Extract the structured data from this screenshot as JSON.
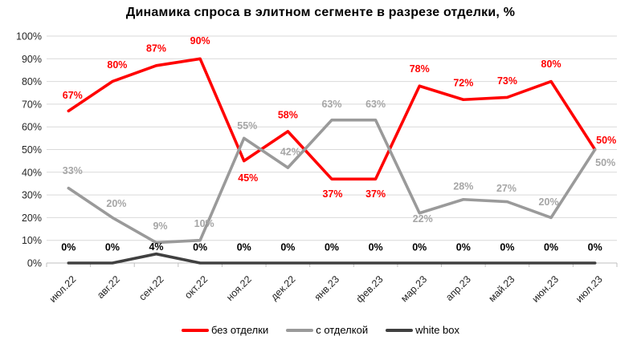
{
  "chart_data": {
    "type": "line",
    "title": "Динамика спроса в элитном сегменте в разрезе отделки, %",
    "categories": [
      "июл.22",
      "авг.22",
      "сен.22",
      "окт.22",
      "ноя.22",
      "дек.22",
      "янв.23",
      "фев.23",
      "мар.23",
      "апр.23",
      "май.23",
      "июн.23",
      "июл.23"
    ],
    "series": [
      {
        "name": "без отделки",
        "color": "#FF0000",
        "label_color": "#FF0000",
        "values": [
          67,
          80,
          87,
          90,
          45,
          58,
          37,
          37,
          78,
          72,
          73,
          80,
          50
        ],
        "label_offsets": [
          [
            5,
            -20
          ],
          [
            6,
            -21
          ],
          [
            0,
            -22
          ],
          [
            0,
            -23
          ],
          [
            5,
            21
          ],
          [
            0,
            -21
          ],
          [
            1,
            18
          ],
          [
            0,
            18
          ],
          [
            0,
            -22
          ],
          [
            0,
            -21
          ],
          [
            0,
            -21
          ],
          [
            0,
            -22
          ],
          [
            14,
            -12
          ]
        ]
      },
      {
        "name": "с отделкой",
        "color": "#9A9A9A",
        "label_color": "#A6A6A6",
        "values": [
          33,
          20,
          9,
          10,
          55,
          42,
          63,
          63,
          22,
          28,
          27,
          20,
          50
        ],
        "label_offsets": [
          [
            5,
            -22
          ],
          [
            5,
            -18
          ],
          [
            5,
            -21
          ],
          [
            5,
            -21
          ],
          [
            4,
            -16
          ],
          [
            3,
            -20
          ],
          [
            0,
            -20
          ],
          [
            0,
            -20
          ],
          [
            4,
            7
          ],
          [
            0,
            -17
          ],
          [
            -1,
            -17
          ],
          [
            -3,
            -20
          ],
          [
            13,
            16
          ]
        ]
      },
      {
        "name": "white box",
        "color": "#404040",
        "label_color": "#000000",
        "values": [
          0,
          0,
          4,
          0,
          0,
          0,
          0,
          0,
          0,
          0,
          0,
          0,
          0
        ],
        "label_offsets": [
          [
            0,
            -20
          ],
          [
            0,
            -20
          ],
          [
            0,
            -9
          ],
          [
            0,
            -20
          ],
          [
            0,
            -20
          ],
          [
            0,
            -20
          ],
          [
            0,
            -20
          ],
          [
            0,
            -20
          ],
          [
            0,
            -20
          ],
          [
            0,
            -20
          ],
          [
            0,
            -20
          ],
          [
            0,
            -20
          ],
          [
            0,
            -20
          ]
        ]
      }
    ],
    "ylim": [
      0,
      100
    ],
    "ytick_labels": [
      "0%",
      "10%",
      "20%",
      "30%",
      "40%",
      "50%",
      "60%",
      "70%",
      "80%",
      "90%",
      "100%"
    ],
    "grid": true,
    "legend_position": "bottom",
    "colors": {
      "gridline": "#D9D9D9",
      "axis_line": "#BFBFBF",
      "tick_text": "#262626",
      "background": "#FFFFFF"
    }
  }
}
